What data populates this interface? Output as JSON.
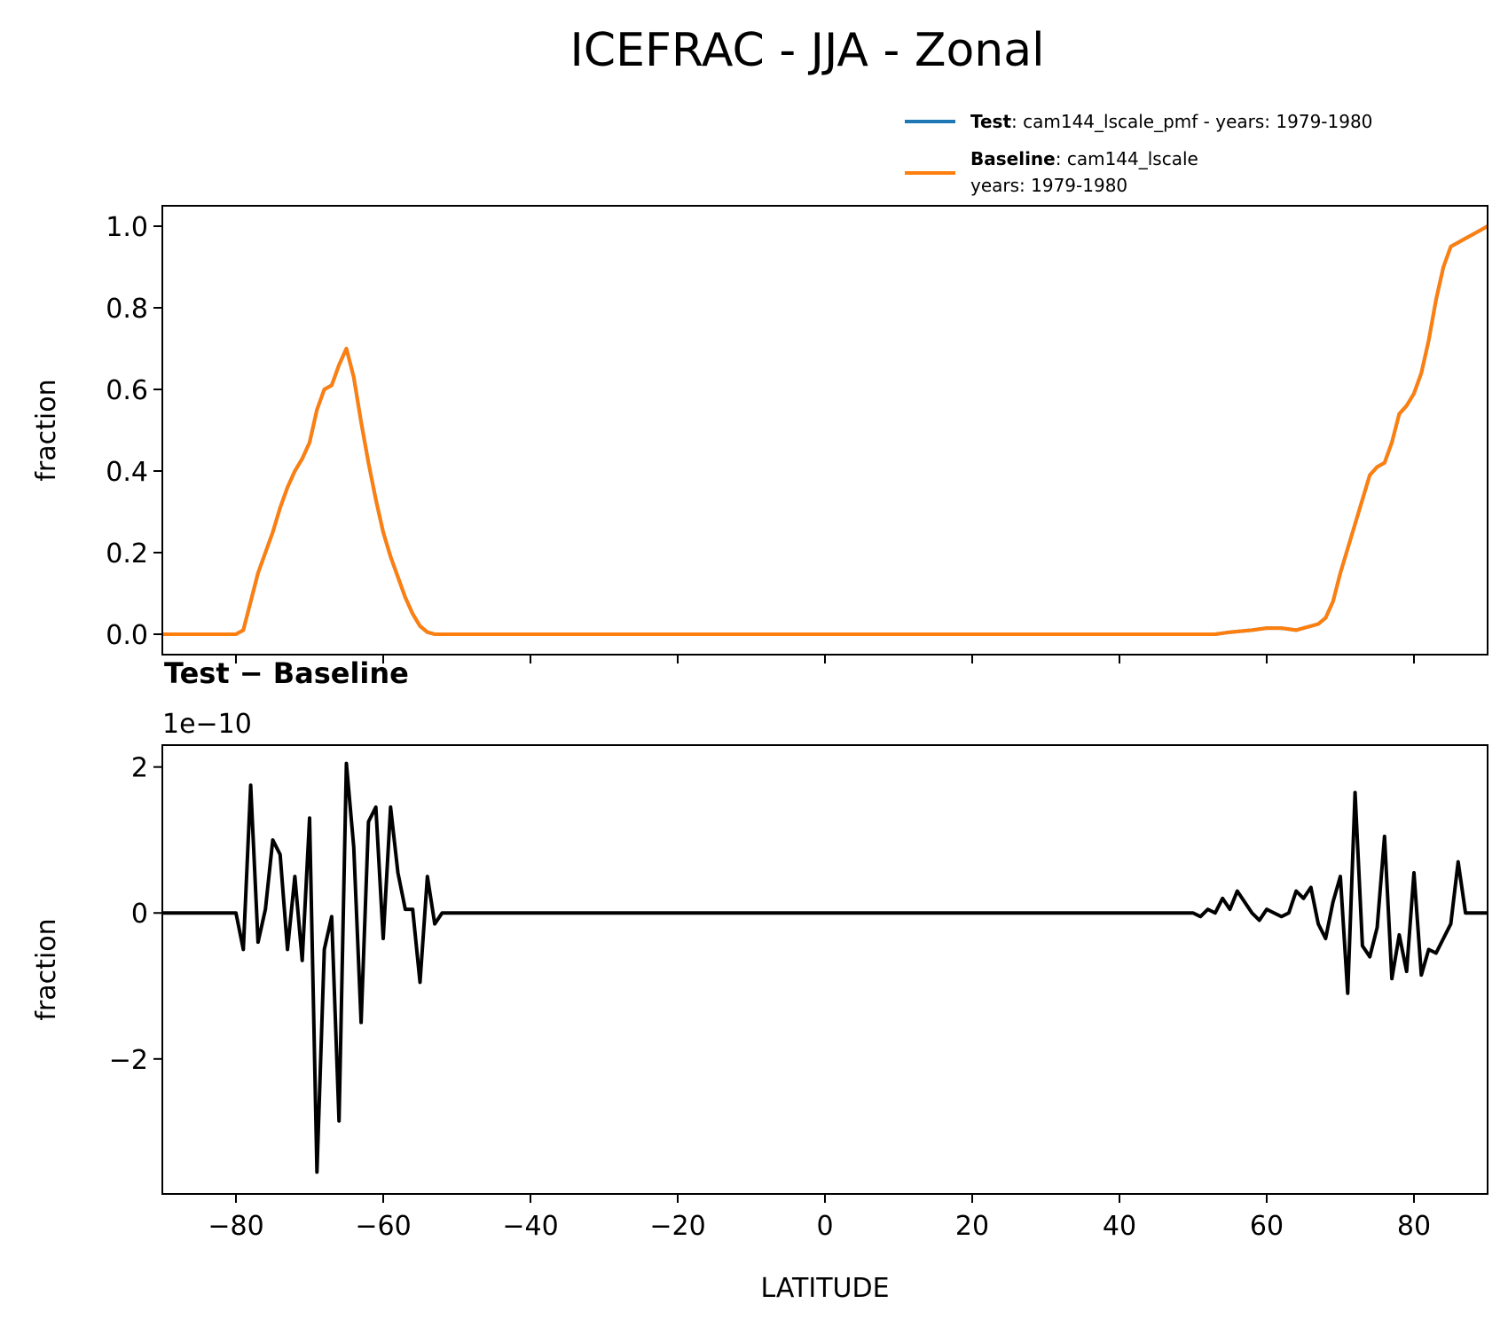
{
  "figure": {
    "suptitle": "ICEFRAC - JJA - Zonal"
  },
  "legend": {
    "test_name": "Test",
    "test_desc": ": cam144_lscale_pmf - years: 1979-1980",
    "base_name": "Baseline",
    "base_desc_line1": ": cam144_lscale",
    "base_desc_line2": "years: 1979-1980"
  },
  "colors": {
    "test": "#1f77b4",
    "baseline": "#ff7f0e",
    "difference": "#000000"
  },
  "chart_data": [
    {
      "type": "line",
      "xlim": [
        -90,
        90
      ],
      "ylim": [
        -0.05,
        1.05
      ],
      "ylabel": "fraction",
      "xlabel": "",
      "yticks": [
        0.0,
        0.2,
        0.4,
        0.6,
        0.8,
        1.0
      ],
      "ytick_labels": [
        "0.0",
        "0.2",
        "0.4",
        "0.6",
        "0.8",
        "1.0"
      ],
      "xticks": [
        -80,
        -60,
        -40,
        -20,
        0,
        20,
        40,
        60,
        80
      ],
      "series": [
        {
          "name": "Test",
          "x": [
            -90,
            -80,
            -79,
            -78,
            -77,
            -76,
            -75,
            -74,
            -73,
            -72,
            -71,
            -70,
            -69,
            -68,
            -67,
            -66,
            -65,
            -64,
            -63,
            -62,
            -61,
            -60,
            -59,
            -58,
            -57,
            -56,
            -55,
            -54,
            -53,
            -50,
            0,
            50,
            53,
            55,
            58,
            60,
            62,
            64,
            65,
            66,
            67,
            68,
            69,
            70,
            71,
            72,
            73,
            74,
            75,
            76,
            77,
            78,
            79,
            80,
            81,
            82,
            83,
            84,
            85,
            86,
            87,
            88,
            89,
            90
          ],
          "y": [
            0,
            0,
            0.01,
            0.08,
            0.15,
            0.2,
            0.25,
            0.31,
            0.36,
            0.4,
            0.43,
            0.47,
            0.55,
            0.6,
            0.61,
            0.66,
            0.7,
            0.63,
            0.52,
            0.42,
            0.33,
            0.25,
            0.19,
            0.14,
            0.09,
            0.05,
            0.02,
            0.005,
            0,
            0,
            0,
            0,
            0,
            0.005,
            0.01,
            0.015,
            0.015,
            0.01,
            0.015,
            0.02,
            0.025,
            0.04,
            0.08,
            0.15,
            0.21,
            0.27,
            0.33,
            0.39,
            0.41,
            0.42,
            0.47,
            0.54,
            0.56,
            0.59,
            0.64,
            0.72,
            0.82,
            0.9,
            0.95,
            0.96,
            0.97,
            0.98,
            0.99,
            1.0
          ]
        },
        {
          "name": "Baseline",
          "x": [
            -90,
            -80,
            -79,
            -78,
            -77,
            -76,
            -75,
            -74,
            -73,
            -72,
            -71,
            -70,
            -69,
            -68,
            -67,
            -66,
            -65,
            -64,
            -63,
            -62,
            -61,
            -60,
            -59,
            -58,
            -57,
            -56,
            -55,
            -54,
            -53,
            -50,
            0,
            50,
            53,
            55,
            58,
            60,
            62,
            64,
            65,
            66,
            67,
            68,
            69,
            70,
            71,
            72,
            73,
            74,
            75,
            76,
            77,
            78,
            79,
            80,
            81,
            82,
            83,
            84,
            85,
            86,
            87,
            88,
            89,
            90
          ],
          "y": [
            0,
            0,
            0.01,
            0.08,
            0.15,
            0.2,
            0.25,
            0.31,
            0.36,
            0.4,
            0.43,
            0.47,
            0.55,
            0.6,
            0.61,
            0.66,
            0.7,
            0.63,
            0.52,
            0.42,
            0.33,
            0.25,
            0.19,
            0.14,
            0.09,
            0.05,
            0.02,
            0.005,
            0,
            0,
            0,
            0,
            0,
            0.005,
            0.01,
            0.015,
            0.015,
            0.01,
            0.015,
            0.02,
            0.025,
            0.04,
            0.08,
            0.15,
            0.21,
            0.27,
            0.33,
            0.39,
            0.41,
            0.42,
            0.47,
            0.54,
            0.56,
            0.59,
            0.64,
            0.72,
            0.82,
            0.9,
            0.95,
            0.96,
            0.97,
            0.98,
            0.99,
            1.0
          ]
        }
      ]
    },
    {
      "type": "line",
      "title": "Test − Baseline",
      "offset_text": "1e−10",
      "xlim": [
        -90,
        90
      ],
      "ylim": [
        -3.85,
        2.3
      ],
      "xlabel": "LATITUDE",
      "ylabel": "fraction",
      "yticks": [
        -2,
        0,
        2
      ],
      "ytick_labels": [
        "−2",
        "0",
        "2"
      ],
      "xticks": [
        -80,
        -60,
        -40,
        -20,
        0,
        20,
        40,
        60,
        80
      ],
      "xtick_labels": [
        "−80",
        "−60",
        "−40",
        "−20",
        "0",
        "20",
        "40",
        "60",
        "80"
      ],
      "series": [
        {
          "x": [
            -90,
            -80,
            -79,
            -78,
            -77,
            -76,
            -75,
            -74,
            -73,
            -72,
            -71,
            -70,
            -69,
            -68,
            -67,
            -66,
            -65,
            -64,
            -63,
            -62,
            -61,
            -60,
            -59,
            -58,
            -57,
            -56,
            -55,
            -54,
            -53,
            -52,
            0,
            50,
            51,
            52,
            53,
            54,
            55,
            56,
            57,
            58,
            59,
            60,
            61,
            62,
            63,
            64,
            65,
            66,
            67,
            68,
            69,
            70,
            71,
            72,
            73,
            74,
            75,
            76,
            77,
            78,
            79,
            80,
            81,
            82,
            83,
            84,
            85,
            86,
            87,
            88,
            89,
            90
          ],
          "y": [
            0,
            0,
            -0.5,
            1.75,
            -0.4,
            0.05,
            1.0,
            0.8,
            -0.5,
            0.5,
            -0.65,
            1.3,
            -3.55,
            -0.5,
            -0.05,
            -2.85,
            2.05,
            0.9,
            -1.5,
            1.25,
            1.45,
            -0.35,
            1.45,
            0.55,
            0.05,
            0.05,
            -0.95,
            0.5,
            -0.15,
            0,
            0,
            0,
            -0.05,
            0.05,
            0,
            0.2,
            0.05,
            0.3,
            0.15,
            0,
            -0.1,
            0.05,
            0,
            -0.05,
            0,
            0.3,
            0.2,
            0.35,
            -0.15,
            -0.35,
            0.15,
            0.5,
            -1.1,
            1.65,
            -0.45,
            -0.6,
            -0.2,
            1.05,
            -0.9,
            -0.3,
            -0.8,
            0.55,
            -0.85,
            -0.5,
            -0.55,
            -0.35,
            -0.15,
            0.7,
            0,
            0,
            0,
            0
          ]
        }
      ]
    }
  ]
}
